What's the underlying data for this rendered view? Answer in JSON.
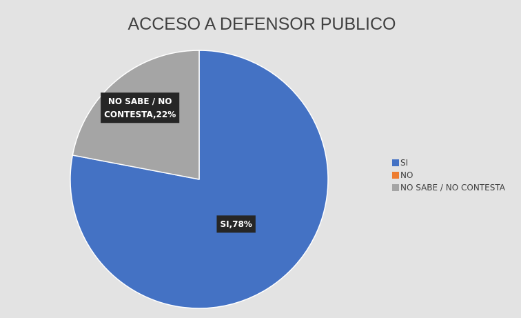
{
  "chart_data": {
    "type": "pie",
    "title": "ACCESO A DEFENSOR PUBLICO",
    "categories": [
      "SI",
      "NO",
      "NO SABE / NO CONTESTA"
    ],
    "values": [
      78,
      0,
      22
    ],
    "unit": "%",
    "colors": [
      "#4472c4",
      "#ed7d31",
      "#a5a5a5"
    ],
    "data_labels": [
      {
        "category": "SI",
        "lines": [
          "SI,78%"
        ]
      },
      {
        "category": "NO SABE / NO CONTESTA",
        "lines": [
          "NO SABE / NO",
          "CONTESTA,22%"
        ]
      }
    ],
    "legend": {
      "position": "right",
      "items": [
        "SI",
        "NO",
        "NO SABE / NO CONTESTA"
      ]
    }
  }
}
